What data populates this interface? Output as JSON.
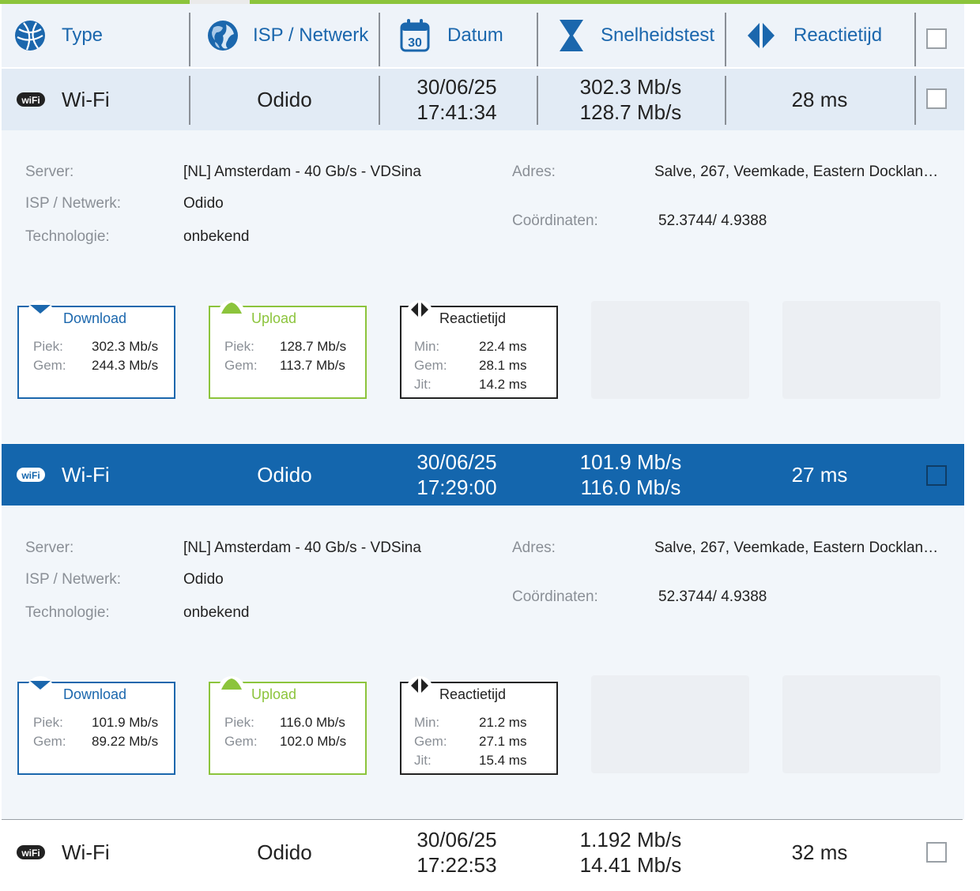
{
  "header": {
    "type_label": "Type",
    "isp_label": "ISP / Netwerk",
    "date_label": "Datum",
    "date_icon_number": "30",
    "speed_label": "Snelheidstest",
    "latency_label": "Reactietijd"
  },
  "rows": [
    {
      "type": "Wi-Fi",
      "isp": "Odido",
      "date": "30/06/25",
      "time": "17:41:34",
      "download": "302.3 Mb/s",
      "upload": "128.7 Mb/s",
      "latency": "28 ms",
      "details": {
        "server_label": "Server:",
        "server": "[NL] Amsterdam - 40 Gb/s - VDSina",
        "isp_label": "ISP / Netwerk:",
        "isp": "Odido",
        "tech_label": "Technologie:",
        "tech": "onbekend",
        "address_label": "Adres:",
        "address": "Salve, 267, Veemkade, Eastern Docklan…",
        "coords_label": "Coördinaten:",
        "coords": "52.3744/ 4.9388",
        "download_card": {
          "title": "Download",
          "peak_label": "Piek:",
          "peak": "302.3 Mb/s",
          "avg_label": "Gem:",
          "avg": "244.3 Mb/s"
        },
        "upload_card": {
          "title": "Upload",
          "peak_label": "Piek:",
          "peak": "128.7 Mb/s",
          "avg_label": "Gem:",
          "avg": "113.7 Mb/s"
        },
        "latency_card": {
          "title": "Reactietijd",
          "min_label": "Min:",
          "min": "22.4 ms",
          "avg_label": "Gem:",
          "avg": "28.1 ms",
          "jit_label": "Jit:",
          "jit": "14.2 ms"
        }
      }
    },
    {
      "type": "Wi-Fi",
      "isp": "Odido",
      "date": "30/06/25",
      "time": "17:29:00",
      "download": "101.9 Mb/s",
      "upload": "116.0 Mb/s",
      "latency": "27 ms",
      "details": {
        "server_label": "Server:",
        "server": "[NL] Amsterdam - 40 Gb/s - VDSina",
        "isp_label": "ISP / Netwerk:",
        "isp": "Odido",
        "tech_label": "Technologie:",
        "tech": "onbekend",
        "address_label": "Adres:",
        "address": "Salve, 267, Veemkade, Eastern Docklan…",
        "coords_label": "Coördinaten:",
        "coords": "52.3744/ 4.9388",
        "download_card": {
          "title": "Download",
          "peak_label": "Piek:",
          "peak": "101.9 Mb/s",
          "avg_label": "Gem:",
          "avg": "89.22 Mb/s"
        },
        "upload_card": {
          "title": "Upload",
          "peak_label": "Piek:",
          "peak": "116.0 Mb/s",
          "avg_label": "Gem:",
          "avg": "102.0 Mb/s"
        },
        "latency_card": {
          "title": "Reactietijd",
          "min_label": "Min:",
          "min": "21.2 ms",
          "avg_label": "Gem:",
          "avg": "27.1 ms",
          "jit_label": "Jit:",
          "jit": "15.4 ms"
        }
      }
    },
    {
      "type": "Wi-Fi",
      "isp": "Odido",
      "date": "30/06/25",
      "time": "17:22:53",
      "download": "1.192 Mb/s",
      "upload": "14.41 Mb/s",
      "latency": "32 ms"
    }
  ],
  "icons": {
    "type": "globe-network-icon",
    "isp": "earth-globe-icon",
    "date": "calendar-icon",
    "speed": "hourglass-icon",
    "latency": "ping-arrows-icon",
    "row_type": "wifi-badge-icon",
    "wifi_badge_text": "wiFi"
  },
  "colors": {
    "accent_blue": "#1b67ad",
    "selected_row": "#1466ad",
    "accent_green": "#8cc43c",
    "header_bg": "#eef3f9",
    "detail_bg": "#f2f6fa"
  }
}
